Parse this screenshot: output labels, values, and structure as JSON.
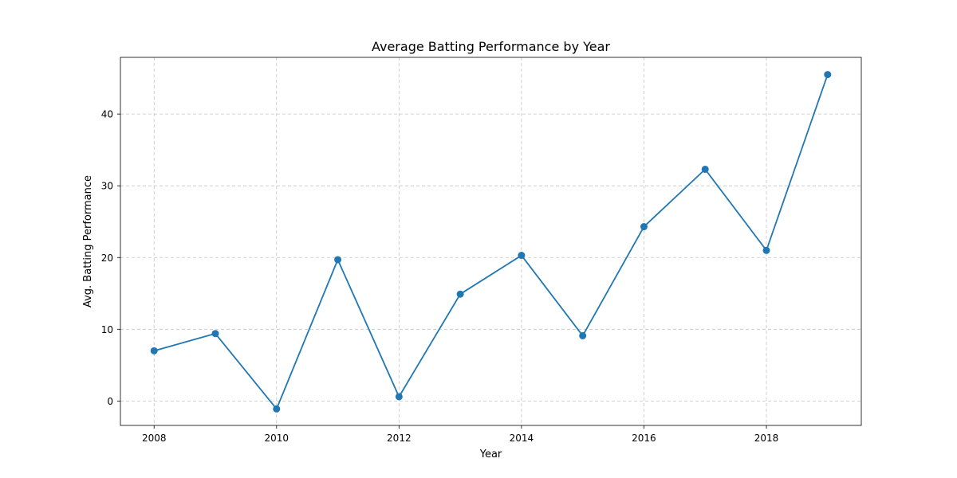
{
  "chart_data": {
    "type": "line",
    "title": "Average Batting Performance by Year",
    "xlabel": "Year",
    "ylabel": "Avg. Batting Performance",
    "x": [
      2008,
      2009,
      2010,
      2011,
      2012,
      2013,
      2014,
      2015,
      2016,
      2017,
      2018,
      2019
    ],
    "series": [
      {
        "values": [
          7.0,
          9.4,
          -1.1,
          19.7,
          0.6,
          14.9,
          20.3,
          9.1,
          24.3,
          32.3,
          21.0,
          45.5
        ],
        "color": "#1f77b4",
        "marker": "circle"
      }
    ],
    "xlim": [
      2007.45,
      2019.55
    ],
    "ylim": [
      -3.4,
      47.9
    ],
    "xticks": [
      2008,
      2010,
      2012,
      2014,
      2016,
      2018
    ],
    "yticks": [
      0,
      10,
      20,
      30,
      40
    ],
    "grid": true,
    "legend": "none"
  }
}
